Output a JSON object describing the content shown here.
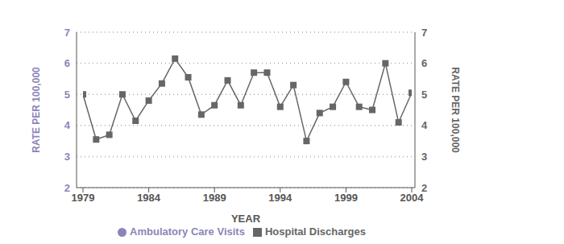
{
  "chart_data": {
    "type": "line",
    "x_label": "YEAR",
    "y_label": "RATE PER 100,000",
    "y2_label": "RATE PER 100,000",
    "x": [
      1979,
      1980,
      1981,
      1982,
      1983,
      1984,
      1985,
      1986,
      1987,
      1988,
      1989,
      1990,
      1991,
      1992,
      1993,
      1994,
      1995,
      1996,
      1997,
      1998,
      1999,
      2000,
      2001,
      2002,
      2003,
      2004
    ],
    "series": [
      {
        "name": "Ambulatory Care Visits",
        "color": "#8b86b8",
        "marker": "circle",
        "axis": "y2",
        "values": [
          null,
          null,
          null,
          null,
          null,
          null,
          null,
          null,
          null,
          null,
          null,
          null,
          null,
          null,
          null,
          null,
          null,
          null,
          null,
          null,
          null,
          null,
          null,
          null,
          null,
          null
        ]
      },
      {
        "name": "Hospital Discharges",
        "color": "#666666",
        "marker": "square",
        "values": [
          5.0,
          3.55,
          3.7,
          5.0,
          4.15,
          4.8,
          5.35,
          6.15,
          5.55,
          4.35,
          4.65,
          5.45,
          4.65,
          5.7,
          5.7,
          4.6,
          5.3,
          3.5,
          4.4,
          4.6,
          5.4,
          4.6,
          4.5,
          6.0,
          4.1,
          5.05
        ]
      }
    ],
    "xlim": [
      1979,
      2004
    ],
    "xticks": [
      1979,
      1984,
      1989,
      1994,
      1999,
      2004
    ],
    "ylim": [
      2,
      7
    ],
    "yticks": [
      2,
      3,
      4,
      5,
      6,
      7
    ],
    "y2lim": [
      2,
      7
    ],
    "y2ticks": [
      2,
      3,
      4,
      5,
      6,
      7
    ],
    "grid": true,
    "legend": "bottom"
  }
}
